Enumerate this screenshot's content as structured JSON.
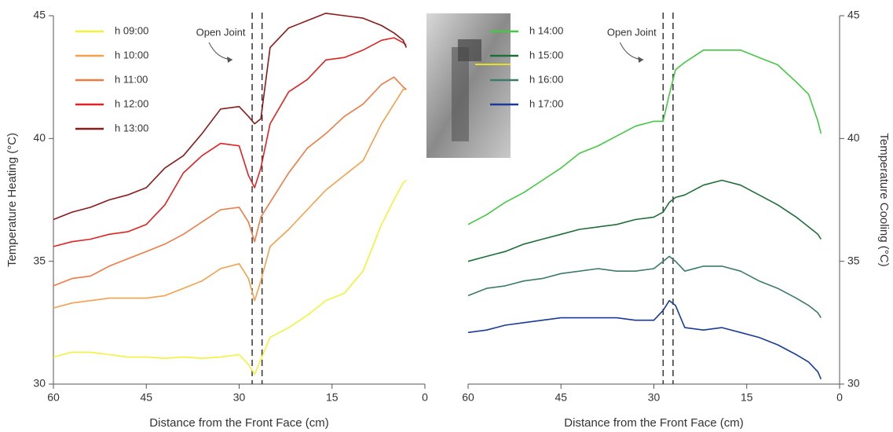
{
  "chart_data": [
    {
      "type": "line",
      "xlabel": "Distance from the Front Face (cm)",
      "ylabel": "Temperature Heating (°C)",
      "y_axis_side": "left",
      "legend": "upper left",
      "xlim": [
        60,
        0
      ],
      "xticks": [
        60,
        45,
        30,
        15,
        0
      ],
      "ylim": [
        30,
        45
      ],
      "yticks": [
        30,
        35,
        40,
        45
      ],
      "annotation": "Open Joint",
      "joint_lines": [
        27.9,
        26.3
      ],
      "x": [
        60,
        57,
        54,
        51,
        48,
        45,
        42,
        39,
        36,
        33,
        30,
        28.5,
        27.5,
        26.5,
        25,
        22,
        19,
        16,
        13,
        10,
        7,
        5,
        3.5,
        3
      ],
      "series": [
        {
          "name": "h 09:00",
          "color": "#f2f23a",
          "values": [
            31.1,
            31.3,
            31.3,
            31.2,
            31.1,
            31.1,
            31.05,
            31.1,
            31.05,
            31.1,
            31.2,
            30.8,
            30.4,
            31.0,
            31.9,
            32.3,
            32.8,
            33.4,
            33.7,
            34.6,
            36.5,
            37.5,
            38.2,
            38.3
          ]
        },
        {
          "name": "h 10:00",
          "color": "#f5a04a",
          "values": [
            33.1,
            33.3,
            33.4,
            33.5,
            33.5,
            33.5,
            33.6,
            33.9,
            34.2,
            34.7,
            34.9,
            34.3,
            33.4,
            34.2,
            35.6,
            36.3,
            37.1,
            37.9,
            38.5,
            39.1,
            40.6,
            41.4,
            42.0,
            42.0
          ]
        },
        {
          "name": "h 11:00",
          "color": "#f07a45",
          "values": [
            34.0,
            34.3,
            34.4,
            34.8,
            35.1,
            35.4,
            35.7,
            36.1,
            36.6,
            37.1,
            37.2,
            36.6,
            35.8,
            36.8,
            37.4,
            38.6,
            39.6,
            40.2,
            40.9,
            41.4,
            42.2,
            42.5,
            42.1,
            42.0
          ]
        },
        {
          "name": "h 12:00",
          "color": "#e02222",
          "values": [
            35.6,
            35.8,
            35.9,
            36.1,
            36.2,
            36.5,
            37.3,
            38.6,
            39.3,
            39.8,
            39.7,
            38.5,
            38.0,
            38.8,
            40.6,
            41.9,
            42.4,
            43.2,
            43.3,
            43.6,
            44.0,
            44.1,
            43.9,
            43.8
          ]
        },
        {
          "name": "h 13:00",
          "color": "#8b1a1a",
          "values": [
            36.7,
            37.0,
            37.2,
            37.5,
            37.7,
            38.0,
            38.8,
            39.3,
            40.2,
            41.2,
            41.3,
            40.9,
            40.6,
            40.8,
            43.7,
            44.5,
            44.8,
            45.1,
            45.0,
            44.9,
            44.6,
            44.3,
            44.0,
            43.7
          ]
        }
      ]
    },
    {
      "type": "line",
      "xlabel": "Distance from the Front Face (cm)",
      "ylabel": "Temperature Cooling (°C)",
      "y_axis_side": "right",
      "legend": "upper left",
      "xlim": [
        60,
        0
      ],
      "xticks": [
        60,
        45,
        30,
        15,
        0
      ],
      "ylim": [
        30,
        45
      ],
      "yticks": [
        30,
        35,
        40,
        45
      ],
      "annotation": "Open Joint",
      "joint_lines": [
        28.5,
        26.9
      ],
      "x": [
        60,
        57,
        54,
        51,
        48,
        45,
        42,
        39,
        36,
        33,
        30,
        28.5,
        27.5,
        26.5,
        25,
        22,
        19,
        16,
        13,
        10,
        7,
        5,
        3.5,
        3
      ],
      "series": [
        {
          "name": "h 14:00",
          "color": "#44c844",
          "values": [
            36.5,
            36.9,
            37.4,
            37.8,
            38.3,
            38.8,
            39.4,
            39.7,
            40.1,
            40.5,
            40.7,
            40.7,
            41.8,
            42.8,
            43.1,
            43.6,
            43.6,
            43.6,
            43.3,
            43.0,
            42.3,
            41.8,
            40.7,
            40.2
          ]
        },
        {
          "name": "h 15:00",
          "color": "#1e6e3a",
          "values": [
            35.0,
            35.2,
            35.4,
            35.7,
            35.9,
            36.1,
            36.3,
            36.4,
            36.5,
            36.7,
            36.8,
            37.0,
            37.4,
            37.6,
            37.7,
            38.1,
            38.3,
            38.1,
            37.7,
            37.3,
            36.8,
            36.4,
            36.1,
            35.9
          ]
        },
        {
          "name": "h 16:00",
          "color": "#3d7a6a",
          "values": [
            33.6,
            33.9,
            34.0,
            34.2,
            34.3,
            34.5,
            34.6,
            34.7,
            34.6,
            34.6,
            34.7,
            35.0,
            35.2,
            35.0,
            34.6,
            34.8,
            34.8,
            34.6,
            34.2,
            33.9,
            33.5,
            33.2,
            32.9,
            32.7
          ]
        },
        {
          "name": "h 17:00",
          "color": "#1a3a9a",
          "values": [
            32.1,
            32.2,
            32.4,
            32.5,
            32.6,
            32.7,
            32.7,
            32.7,
            32.7,
            32.6,
            32.6,
            33.0,
            33.4,
            33.2,
            32.3,
            32.2,
            32.3,
            32.1,
            31.9,
            31.6,
            31.2,
            30.9,
            30.5,
            30.2
          ]
        }
      ]
    }
  ]
}
